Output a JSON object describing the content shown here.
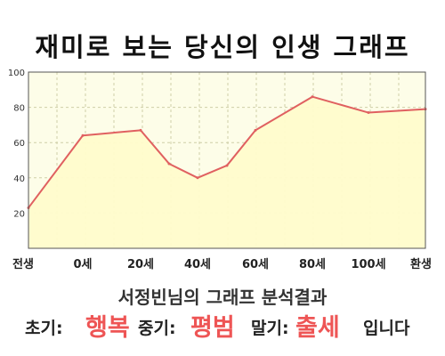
{
  "chart_data": {
    "type": "area",
    "title": "재미로 보는 당신의 인생 그래프",
    "x_labels": [
      "전생",
      "0세",
      "20세",
      "40세",
      "60세",
      "80세",
      "100세",
      "환생"
    ],
    "points": [
      {
        "x": "전생",
        "y": 23
      },
      {
        "x": "0세",
        "y": 64
      },
      {
        "x": "20세",
        "y": 67
      },
      {
        "x": "30세",
        "y": 48
      },
      {
        "x": "40세",
        "y": 40
      },
      {
        "x": "50세",
        "y": 47
      },
      {
        "x": "60세",
        "y": 67
      },
      {
        "x": "80세",
        "y": 86
      },
      {
        "x": "100세",
        "y": 77
      },
      {
        "x": "환생",
        "y": 79
      }
    ],
    "ylim": [
      0,
      100
    ],
    "y_ticks": [
      20,
      40,
      60,
      80,
      100
    ],
    "grid": true,
    "colors": {
      "line": "#e06060",
      "fill": "#fffccc",
      "plot_background": "#fdfde8",
      "grid": "#cfcfa8"
    }
  },
  "subtitle": "서정빈님의 그래프 분석결과",
  "result": {
    "early_label": "초기:",
    "early_value": "행복",
    "middle_label": "중기:",
    "middle_value": "평범",
    "late_label": "말기:",
    "late_value": "출세",
    "ending": "입니다"
  },
  "accent_color": "#ee5555"
}
